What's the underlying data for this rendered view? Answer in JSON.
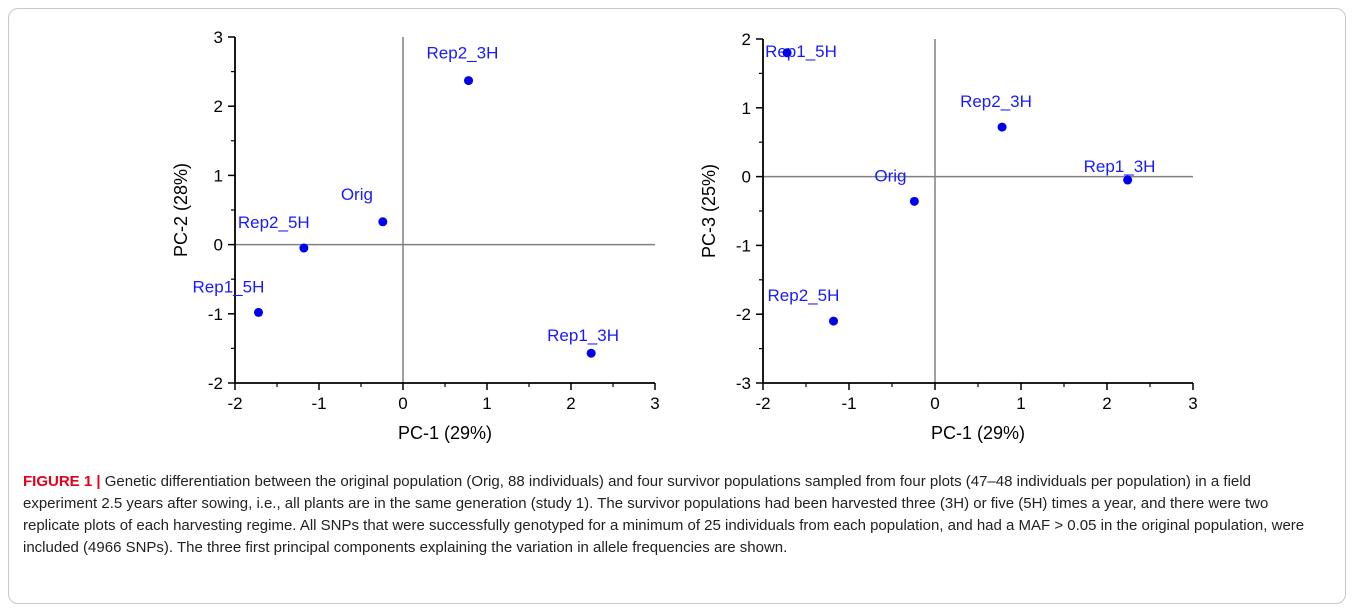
{
  "colors": {
    "point": "#0000ee",
    "label": "#1a1aff",
    "axis": "#000000",
    "crosshair": "#808080",
    "figure_label": "#e2001a",
    "caption_text": "#222222"
  },
  "chart_data": [
    {
      "type": "scatter",
      "title": "",
      "xlabel": "PC-1 (29%)",
      "ylabel": "PC-2 (28%)",
      "xlim": [
        -2,
        3
      ],
      "ylim": [
        -2,
        3
      ],
      "xticks": [
        "-2",
        "-1",
        "0",
        "1",
        "2",
        "3"
      ],
      "yticks": [
        "-2",
        "-1",
        "0",
        "1",
        "2",
        "3"
      ],
      "grid": false,
      "reference_lines": {
        "x": 0,
        "y": 0
      },
      "points": [
        {
          "label": "Rep2_3H",
          "x": 0.78,
          "y": 2.37
        },
        {
          "label": "Orig",
          "x": -0.24,
          "y": 0.33
        },
        {
          "label": "Rep2_5H",
          "x": -1.18,
          "y": -0.05
        },
        {
          "label": "Rep1_5H",
          "x": -1.72,
          "y": -0.98
        },
        {
          "label": "Rep1_3H",
          "x": 2.24,
          "y": -1.57
        }
      ]
    },
    {
      "type": "scatter",
      "title": "",
      "xlabel": "PC-1 (29%)",
      "ylabel": "PC-3 (25%)",
      "xlim": [
        -2,
        3
      ],
      "ylim": [
        -3,
        2
      ],
      "xticks": [
        "-2",
        "-1",
        "0",
        "1",
        "2",
        "3"
      ],
      "yticks": [
        "-3",
        "-2",
        "-1",
        "0",
        "1",
        "2"
      ],
      "grid": false,
      "reference_lines": {
        "x": 0,
        "y": 0
      },
      "points": [
        {
          "label": "Rep1_5H",
          "x": -1.72,
          "y": 1.8
        },
        {
          "label": "Rep2_3H",
          "x": 0.78,
          "y": 0.72
        },
        {
          "label": "Rep1_3H",
          "x": 2.24,
          "y": -0.05
        },
        {
          "label": "Orig",
          "x": -0.24,
          "y": -0.36
        },
        {
          "label": "Rep2_5H",
          "x": -1.18,
          "y": -2.1
        }
      ]
    }
  ],
  "caption": {
    "label": "FIGURE 1 |",
    "text": " Genetic differentiation between the original population (Orig, 88 individuals) and four survivor populations sampled from four plots (47–48 individuals per population) in a field experiment 2.5 years after sowing, i.e., all plants are in the same generation (study 1). The survivor populations had been harvested three (3H) or five (5H) times a year, and there were two replicate plots of each harvesting regime. All SNPs that were successfully genotyped for a minimum of 25 individuals from each population, and had a MAF > 0.05 in the original population, were included (4966 SNPs). The three first principal components explaining the variation in allele frequencies are shown."
  }
}
